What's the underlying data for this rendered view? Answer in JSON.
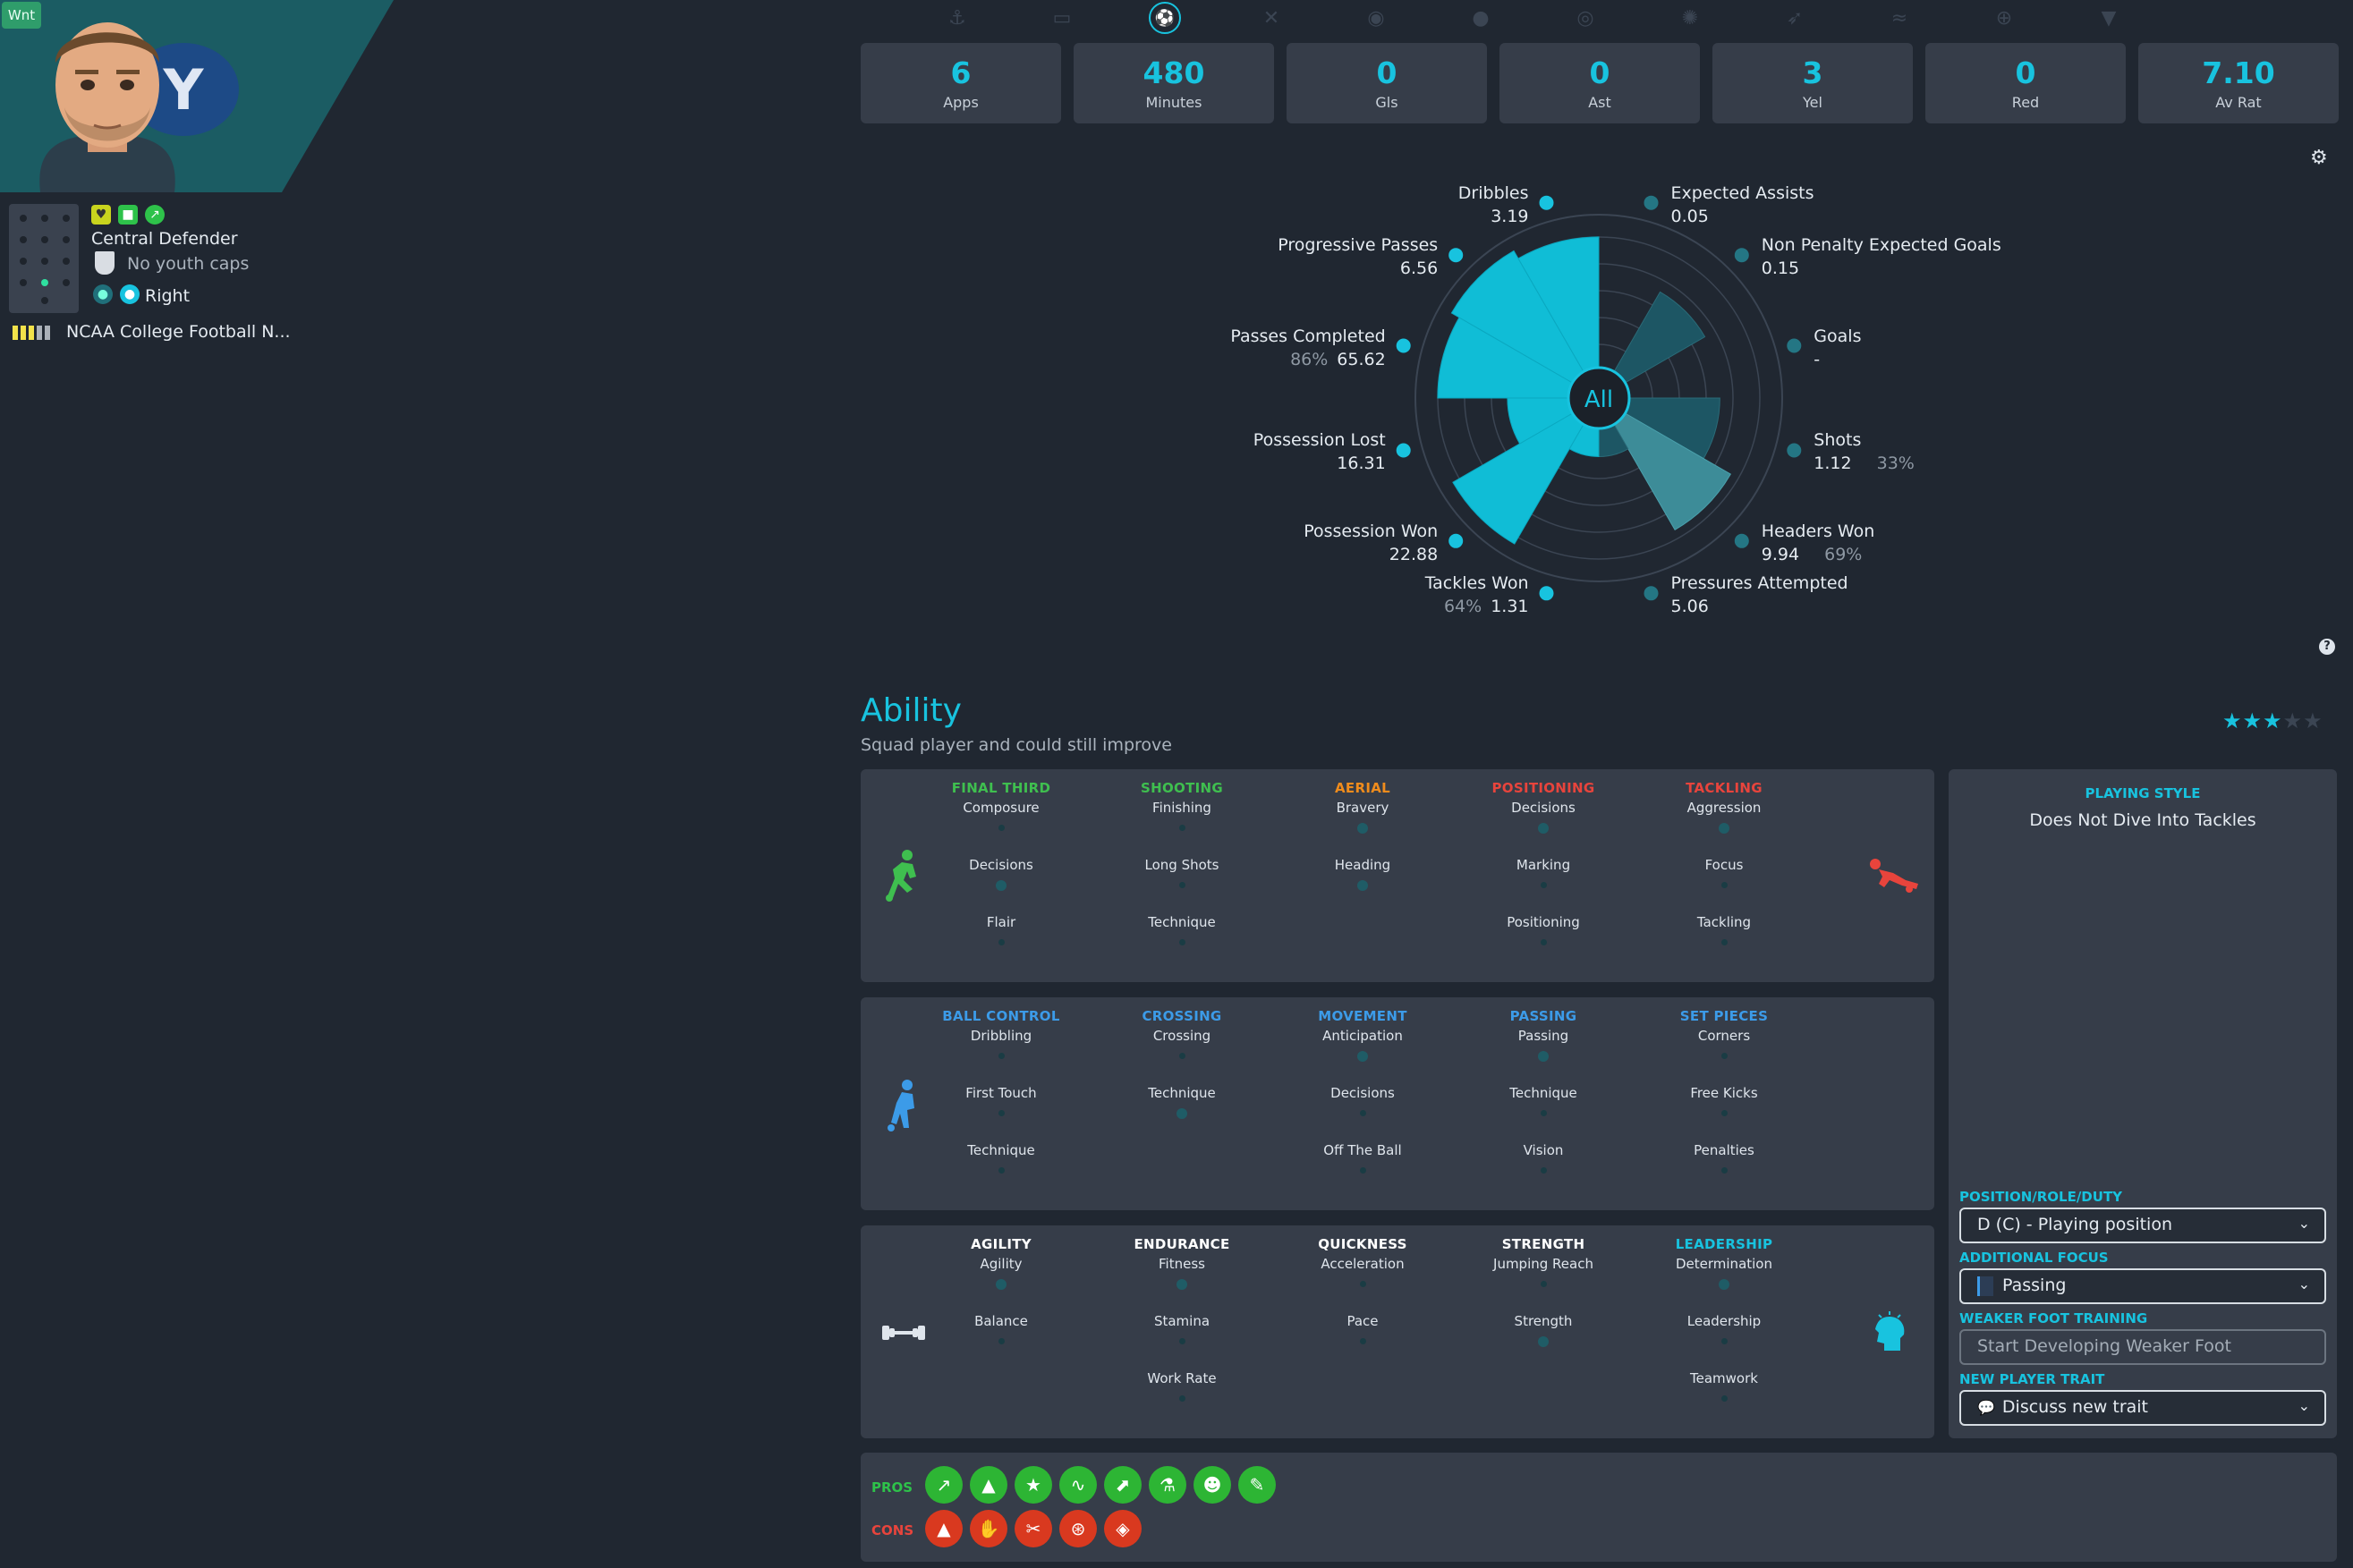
{
  "player": {
    "badge": "Wnt",
    "position": "Central Defender",
    "youth_caps": "No youth caps",
    "foot": "Right",
    "club": "NCAA College Football N..."
  },
  "tabs": [
    "anchor-icon",
    "car-icon",
    "dribble-icon",
    "cross-icon",
    "eye-icon",
    "ball-icon",
    "target-icon",
    "wheel-icon",
    "pass-icon",
    "wave-icon",
    "crosshair-icon",
    "wolf-icon"
  ],
  "stats": [
    {
      "value": "6",
      "label": "Apps"
    },
    {
      "value": "480",
      "label": "Minutes"
    },
    {
      "value": "0",
      "label": "Gls"
    },
    {
      "value": "0",
      "label": "Ast"
    },
    {
      "value": "3",
      "label": "Yel"
    },
    {
      "value": "0",
      "label": "Red"
    },
    {
      "value": "7.10",
      "label": "Av Rat"
    }
  ],
  "radar": {
    "center": "All",
    "metrics": [
      {
        "name": "Expected Assists",
        "value": "0.05",
        "pct": "",
        "level": 0
      },
      {
        "name": "Non Penalty Expected Goals",
        "value": "0.15",
        "pct": "",
        "level": 0.62
      },
      {
        "name": "Goals",
        "value": "-",
        "pct": "",
        "level": 0
      },
      {
        "name": "Shots",
        "value": "1.12",
        "pct": "33%",
        "level": 0.61
      },
      {
        "name": "Headers Won",
        "value": "9.94",
        "pct": "69%",
        "level": 0.82
      },
      {
        "name": "Pressures Attempted",
        "value": "5.06",
        "pct": "",
        "level": 0.19
      },
      {
        "name": "Tackles Won",
        "value": "1.31",
        "pct": "64%",
        "level": 0.19
      },
      {
        "name": "Possession Won",
        "value": "22.88",
        "pct": "",
        "level": 0.93
      },
      {
        "name": "Possession Lost",
        "value": "16.31",
        "pct": "",
        "level": 0.41
      },
      {
        "name": "Passes Completed",
        "value": "65.62",
        "pct": "86%",
        "level": 0.88
      },
      {
        "name": "Progressive Passes",
        "value": "6.56",
        "pct": "",
        "level": 0.94
      },
      {
        "name": "Dribbles",
        "value": "3.19",
        "pct": "",
        "level": 0.88
      }
    ]
  },
  "ability": {
    "title": "Ability",
    "subtitle": "Squad player and could still improve",
    "stars": 3,
    "stars_total": 5,
    "card1": [
      {
        "head": "FINAL THIRD",
        "color": "#3fbf4f",
        "attrs": [
          "Composure",
          "Decisions",
          "Flair"
        ]
      },
      {
        "head": "SHOOTING",
        "color": "#3fbf4f",
        "attrs": [
          "Finishing",
          "Long Shots",
          "Technique"
        ]
      },
      {
        "head": "AERIAL",
        "color": "#f08c1c",
        "attrs": [
          "Bravery",
          "Heading"
        ]
      },
      {
        "head": "POSITIONING",
        "color": "#e8443c",
        "attrs": [
          "Decisions",
          "Marking",
          "Positioning"
        ]
      },
      {
        "head": "TACKLING",
        "color": "#e8443c",
        "attrs": [
          "Aggression",
          "Focus",
          "Tackling"
        ]
      }
    ],
    "card2": [
      {
        "head": "BALL CONTROL",
        "color": "#3c9be8",
        "attrs": [
          "Dribbling",
          "First Touch",
          "Technique"
        ]
      },
      {
        "head": "CROSSING",
        "color": "#3c9be8",
        "attrs": [
          "Crossing",
          "Technique"
        ]
      },
      {
        "head": "MOVEMENT",
        "color": "#3c9be8",
        "attrs": [
          "Anticipation",
          "Decisions",
          "Off The Ball"
        ]
      },
      {
        "head": "PASSING",
        "color": "#3c9be8",
        "attrs": [
          "Passing",
          "Technique",
          "Vision"
        ]
      },
      {
        "head": "SET PIECES",
        "color": "#3c9be8",
        "attrs": [
          "Corners",
          "Free Kicks",
          "Penalties"
        ]
      }
    ],
    "card3": [
      {
        "head": "AGILITY",
        "color": "#ffffff",
        "attrs": [
          "Agility",
          "Balance"
        ]
      },
      {
        "head": "ENDURANCE",
        "color": "#ffffff",
        "attrs": [
          "Fitness",
          "Stamina",
          "Work Rate"
        ]
      },
      {
        "head": "QUICKNESS",
        "color": "#ffffff",
        "attrs": [
          "Acceleration",
          "Pace"
        ]
      },
      {
        "head": "STRENGTH",
        "color": "#ffffff",
        "attrs": [
          "Jumping Reach",
          "Strength"
        ]
      },
      {
        "head": "LEADERSHIP",
        "color": "#18c3df",
        "attrs": [
          "Determination",
          "Leadership",
          "Teamwork"
        ]
      }
    ]
  },
  "side": {
    "playing_style_label": "PLAYING STYLE",
    "playing_style": "Does Not Dive Into Tackles",
    "prd_label": "POSITION/ROLE/DUTY",
    "prd_value": "D (C) - Playing position",
    "focus_label": "ADDITIONAL FOCUS",
    "focus_value": "Passing",
    "weak_label": "WEAKER FOOT TRAINING",
    "weak_value": "Start Developing Weaker Foot",
    "trait_label": "NEW PLAYER TRAIT",
    "trait_value": "Discuss new trait"
  },
  "pros_label": "PROS",
  "cons_label": "CONS",
  "pros": [
    "trend-icon",
    "cone-icon",
    "star-icon",
    "wave-icon",
    "trend-cone-icon",
    "flask-icon",
    "head-icon",
    "bandage-icon"
  ],
  "cons": [
    "cone-face-icon",
    "handshake-icon",
    "scissors-icon",
    "circles-icon",
    "cone-target-icon"
  ],
  "colors": {
    "accent": "#18c3df",
    "bg": "#202731",
    "card": "#363d49"
  }
}
